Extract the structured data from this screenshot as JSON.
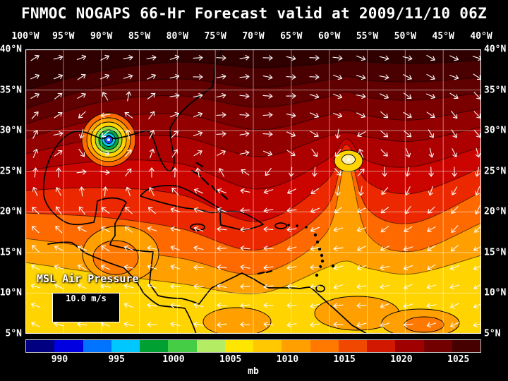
{
  "title": "FNMOC NOGAPS 66-Hr Forecast valid at 2009/11/10 06Z",
  "axes": {
    "lon_labels": [
      "100°W",
      "95°W",
      "90°W",
      "85°W",
      "80°W",
      "75°W",
      "70°W",
      "65°W",
      "60°W",
      "55°W",
      "50°W",
      "45°W",
      "40°W"
    ],
    "lat_labels": [
      "40°N",
      "35°N",
      "30°N",
      "25°N",
      "20°N",
      "15°N",
      "10°N",
      "5°N"
    ]
  },
  "overlay": {
    "variable_label": "MSL Air Pressure",
    "wind_legend_label": "10.0 m/s"
  },
  "colorbar": {
    "unit": "mb",
    "tick_labels": [
      "990",
      "995",
      "1000",
      "1005",
      "1010",
      "1015",
      "1020",
      "1025"
    ],
    "colors": [
      "#000080",
      "#0000e0",
      "#0073ff",
      "#00c8ff",
      "#00a032",
      "#46cd46",
      "#b4ed64",
      "#ffe600",
      "#ffc800",
      "#ffa000",
      "#ff7800",
      "#f04800",
      "#d21800",
      "#a00000",
      "#730000",
      "#460000"
    ]
  },
  "chart_data": {
    "type": "heatmap",
    "title": "FNMOC NOGAPS 66-Hr Forecast valid at 2009/11/10 06Z",
    "model": "FNMOC NOGAPS",
    "forecast_hour": 66,
    "valid_time": "2009/11/10 06Z",
    "variable": "MSL Air Pressure",
    "units": "mb",
    "x_axis": {
      "side": "top",
      "ticks": [
        "100°W",
        "95°W",
        "90°W",
        "85°W",
        "80°W",
        "75°W",
        "70°W",
        "65°W",
        "60°W",
        "55°W",
        "50°W",
        "45°W",
        "40°W"
      ]
    },
    "y_axis": {
      "sides": [
        "left",
        "right"
      ],
      "ticks": [
        "40°N",
        "35°N",
        "30°N",
        "25°N",
        "20°N",
        "15°N",
        "10°N",
        "5°N"
      ]
    },
    "grid_interval_deg": 5,
    "colorbar_ticks_mb": [
      990,
      995,
      1000,
      1005,
      1010,
      1015,
      1020,
      1025
    ],
    "wind_reference_vector": "10.0 m/s",
    "features": [
      {
        "name": "tropical-cyclone",
        "lon": "89°W",
        "lat": "28.5°N",
        "approx_min_pressure_mb": 992,
        "note": "closed circulation with concentric rings in Gulf of Mexico"
      },
      {
        "name": "weak-low",
        "lon": "63°W",
        "lat": "27°N",
        "approx_min_pressure_mb": 1008
      },
      {
        "name": "high-pressure-ridge",
        "region": "northern edge of domain",
        "approx_max_pressure_mb": 1027
      },
      {
        "name": "mid-latitude-westerlies",
        "region": "north of 30°N",
        "direction": "west-to-east"
      },
      {
        "name": "trade-wind-easterlies",
        "region": "south of 20°N",
        "direction": "east-to-west"
      }
    ],
    "pressure_band_colors_north_to_south": [
      "#300000",
      "#4a0000",
      "#610000",
      "#7a0000",
      "#930000",
      "#ad0000",
      "#cb0400",
      "#ec2800",
      "#ff6a00",
      "#ffa000",
      "#ffd400"
    ]
  }
}
